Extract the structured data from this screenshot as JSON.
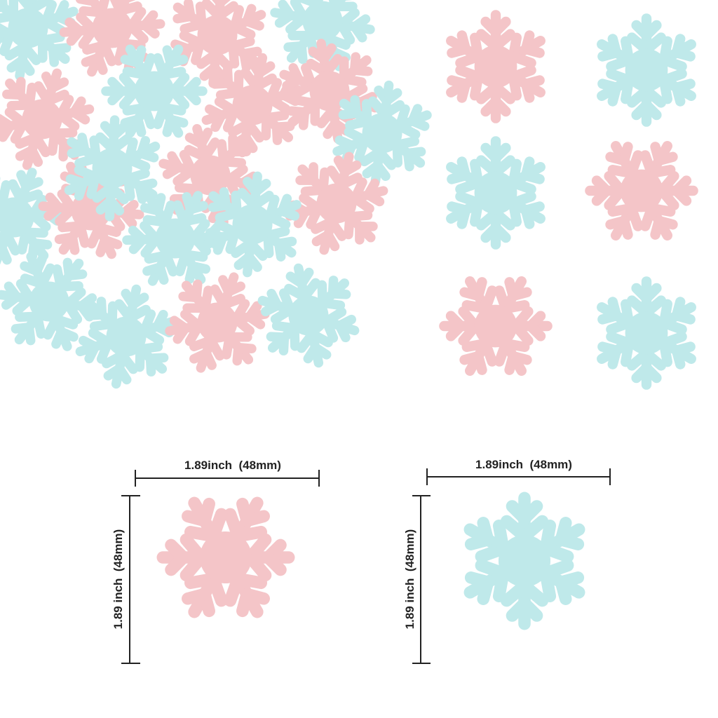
{
  "dimensions": [
    {
      "width_label": "1.89inch  (48mm)",
      "height_label": "1.89 inch  (48mm)"
    },
    {
      "width_label": "1.89inch  (48mm)",
      "height_label": "1.89 inch  (48mm)"
    }
  ]
}
